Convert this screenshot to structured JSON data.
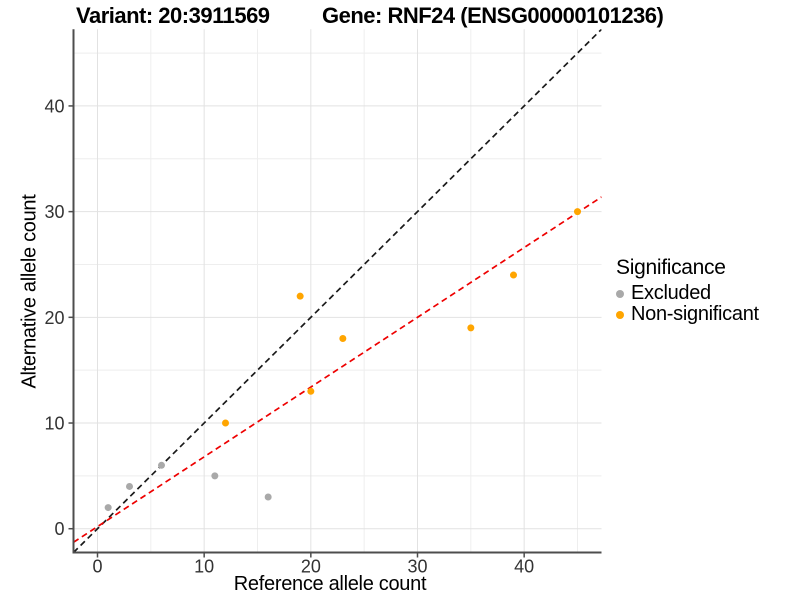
{
  "titles": {
    "variant": "Variant: 20:3911569",
    "gene": "Gene: RNF24 (ENSG00000101236)"
  },
  "chart_data": {
    "type": "scatter",
    "xlabel": "Reference allele count",
    "ylabel": "Alternative allele count",
    "xlim": [
      -2.25,
      47.25
    ],
    "ylim": [
      -2.25,
      47.25
    ],
    "x_ticks": [
      0,
      10,
      20,
      30,
      40
    ],
    "y_ticks": [
      0,
      10,
      20,
      30,
      40
    ],
    "x_minor_ticks": [
      5,
      15,
      25,
      35,
      45
    ],
    "y_minor_ticks": [
      5,
      15,
      25,
      35,
      45
    ],
    "grid": "major+minor, light gray on white",
    "series": [
      {
        "name": "Excluded",
        "color": "#A9A9A9",
        "points": [
          [
            1,
            2
          ],
          [
            3,
            4
          ],
          [
            6,
            6
          ],
          [
            11,
            5
          ],
          [
            16,
            3
          ]
        ]
      },
      {
        "name": "Non-significant",
        "color": "#FFA500",
        "points": [
          [
            12,
            10
          ],
          [
            19,
            22
          ],
          [
            20,
            13
          ],
          [
            23,
            18
          ],
          [
            35,
            19
          ],
          [
            39,
            24
          ],
          [
            45,
            30
          ]
        ]
      }
    ],
    "lines": [
      {
        "name": "identity-line",
        "slope": 1,
        "intercept": 0,
        "color": "#1A1A1A",
        "dash": "6 4"
      },
      {
        "name": "fit-line",
        "slope": 0.66,
        "intercept": 0.2,
        "color": "#EE0000",
        "dash": "6 4"
      }
    ],
    "legend": {
      "title": "Significance",
      "position": "right",
      "entries": [
        "Excluded",
        "Non-significant"
      ]
    }
  },
  "style": {
    "axis_line_color": "#4D4D4D",
    "tick_label_color": "#333333",
    "major_grid_color": "#E2E2E2",
    "minor_grid_color": "#EEEEEE",
    "point_radius": 3.5
  }
}
